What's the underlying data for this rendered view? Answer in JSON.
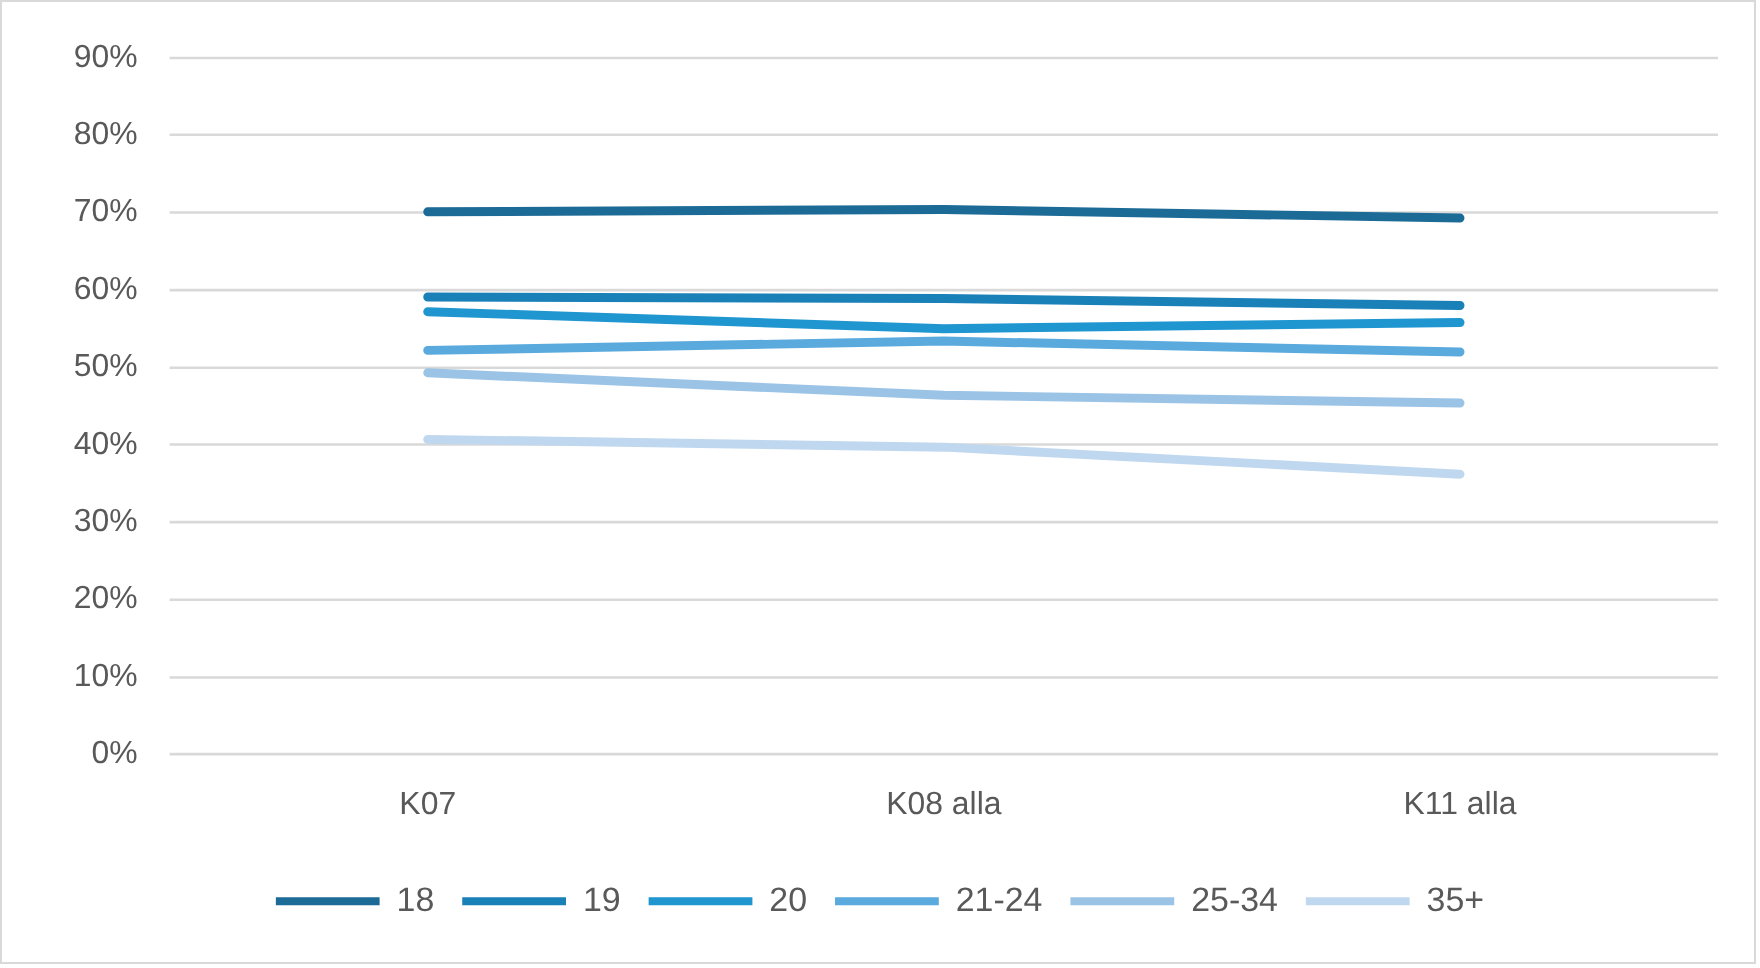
{
  "chart_data": {
    "type": "line",
    "categories": [
      "K07",
      "K08 alla",
      "K11 alla"
    ],
    "series": [
      {
        "name": "18",
        "color": "#1c6a96",
        "values": [
          70.1,
          70.4,
          69.3
        ]
      },
      {
        "name": "19",
        "color": "#1a80b8",
        "values": [
          59.1,
          58.9,
          58.0
        ]
      },
      {
        "name": "20",
        "color": "#1f96d0",
        "values": [
          57.2,
          55.0,
          55.8
        ]
      },
      {
        "name": "21-24",
        "color": "#5aaadd",
        "values": [
          52.2,
          53.4,
          52.0
        ]
      },
      {
        "name": "25-34",
        "color": "#9ac3e6",
        "values": [
          49.3,
          46.4,
          45.4
        ]
      },
      {
        "name": "35+",
        "color": "#c0d8ef",
        "values": [
          40.7,
          39.7,
          36.2
        ]
      }
    ],
    "ylim": [
      0,
      90
    ],
    "yticks": [
      {
        "value": 0,
        "label": "0%"
      },
      {
        "value": 10,
        "label": "10%"
      },
      {
        "value": 20,
        "label": "20%"
      },
      {
        "value": 30,
        "label": "30%"
      },
      {
        "value": 40,
        "label": "40%"
      },
      {
        "value": 50,
        "label": "50%"
      },
      {
        "value": 60,
        "label": "60%"
      },
      {
        "value": 70,
        "label": "70%"
      },
      {
        "value": 80,
        "label": "80%"
      },
      {
        "value": 90,
        "label": "90%"
      }
    ],
    "grid": "y",
    "legend": "bottom",
    "marker": "none",
    "line_style": "solid"
  }
}
